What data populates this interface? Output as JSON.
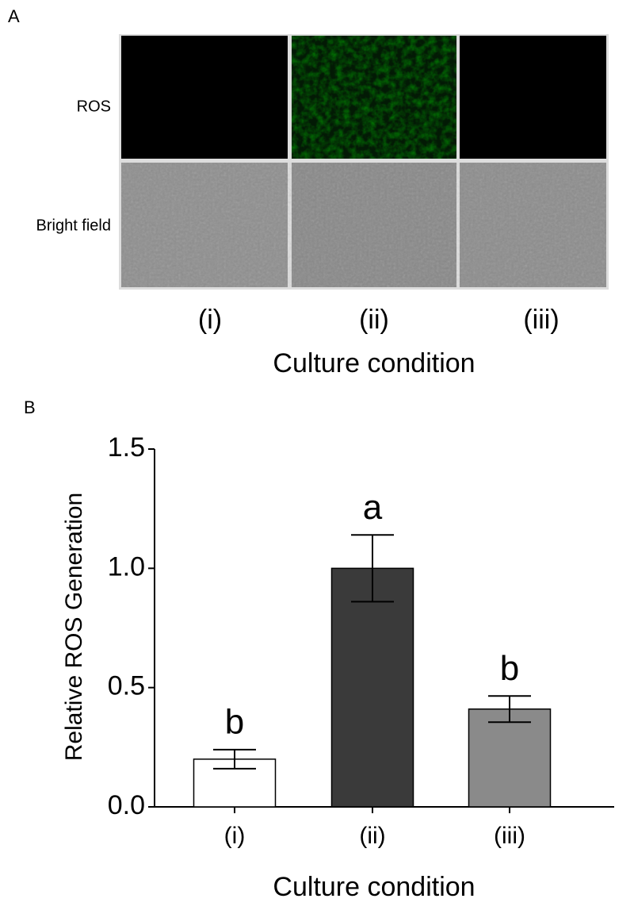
{
  "panel_a": {
    "label": "A",
    "rows": [
      "ROS",
      "Bright field"
    ],
    "columns": [
      "(i)",
      "(ii)",
      "(iii)"
    ],
    "x_label": "Culture condition"
  },
  "chart_data": {
    "type": "bar",
    "panel_label": "B",
    "y_label": "Relative ROS Generation",
    "x_label": "Culture condition",
    "categories": [
      "(i)",
      "(ii)",
      "(iii)"
    ],
    "values": [
      0.2,
      1.0,
      0.41
    ],
    "errors": [
      0.04,
      0.14,
      0.055
    ],
    "annotations": [
      "b",
      "a",
      "b"
    ],
    "colors": [
      "#ffffff",
      "#3a3a3a",
      "#8a8a8a"
    ],
    "ylim": [
      0,
      1.5
    ],
    "yticks": [
      {
        "value": 0,
        "label": "0.0"
      },
      0.5,
      {
        "value": 1,
        "label": "1.0"
      },
      1.5
    ]
  }
}
